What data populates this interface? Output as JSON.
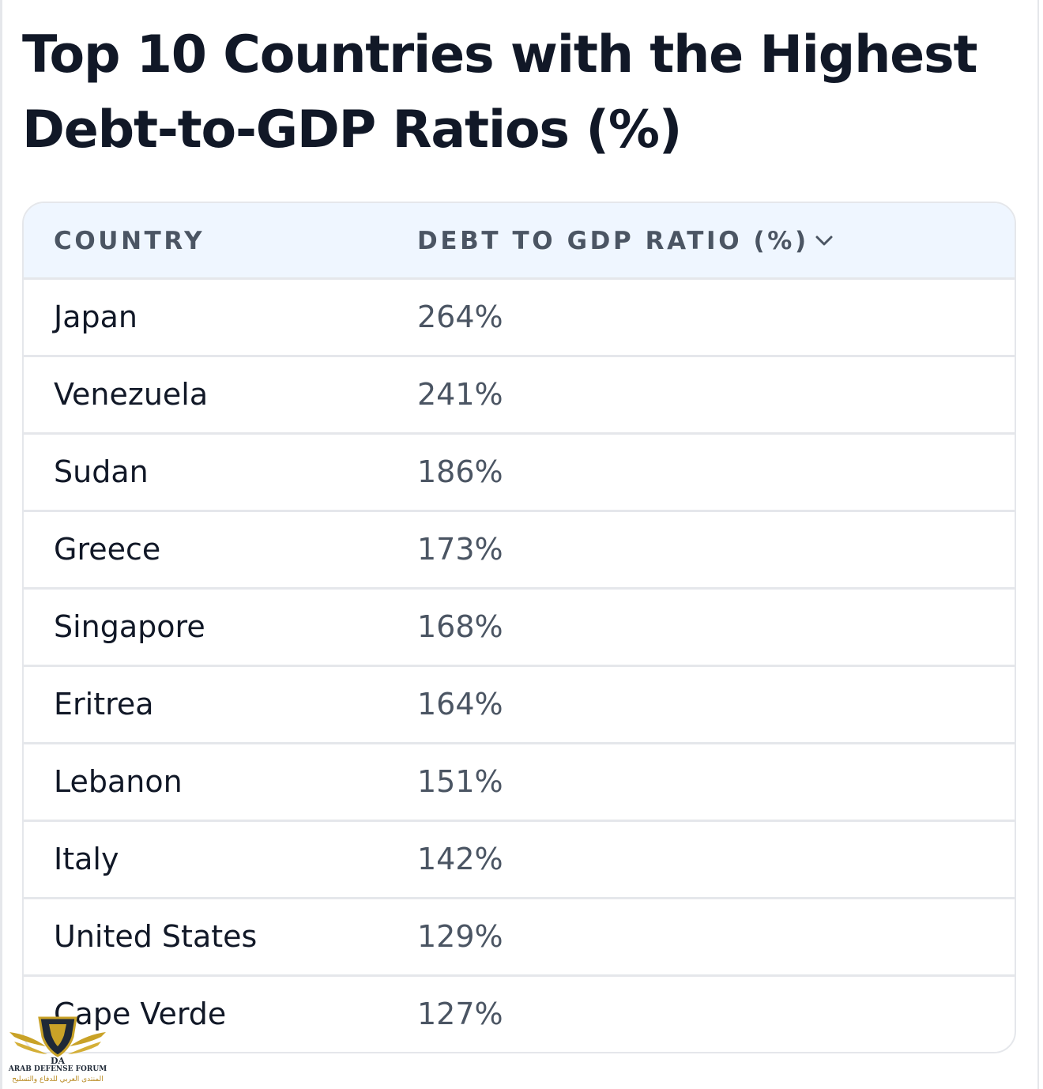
{
  "title": "Top 10 Countries with the Highest Debt-to-GDP Ratios (%)",
  "table": {
    "columns": {
      "country": "COUNTRY",
      "ratio": "DEBT TO GDP RATIO (%)"
    },
    "sort_icon": "chevron-down-icon",
    "rows": [
      {
        "country": "Japan",
        "ratio": "264%"
      },
      {
        "country": "Venezuela",
        "ratio": "241%"
      },
      {
        "country": "Sudan",
        "ratio": "186%"
      },
      {
        "country": "Greece",
        "ratio": "173%"
      },
      {
        "country": "Singapore",
        "ratio": "168%"
      },
      {
        "country": "Eritrea",
        "ratio": "164%"
      },
      {
        "country": "Lebanon",
        "ratio": "151%"
      },
      {
        "country": "Italy",
        "ratio": "142%"
      },
      {
        "country": "United States",
        "ratio": "129%"
      },
      {
        "country": "Cape Verde",
        "ratio": "127%"
      }
    ]
  },
  "watermark": {
    "logo_mark": "DA",
    "line1": "ARAB DEFENSE FORUM",
    "line2": "المنتدى العربي للدفاع والتسليح"
  },
  "colors": {
    "header_bg": "#eff6ff",
    "border": "#e5e7eb",
    "text_primary": "#111827",
    "text_secondary": "#4b5563"
  }
}
